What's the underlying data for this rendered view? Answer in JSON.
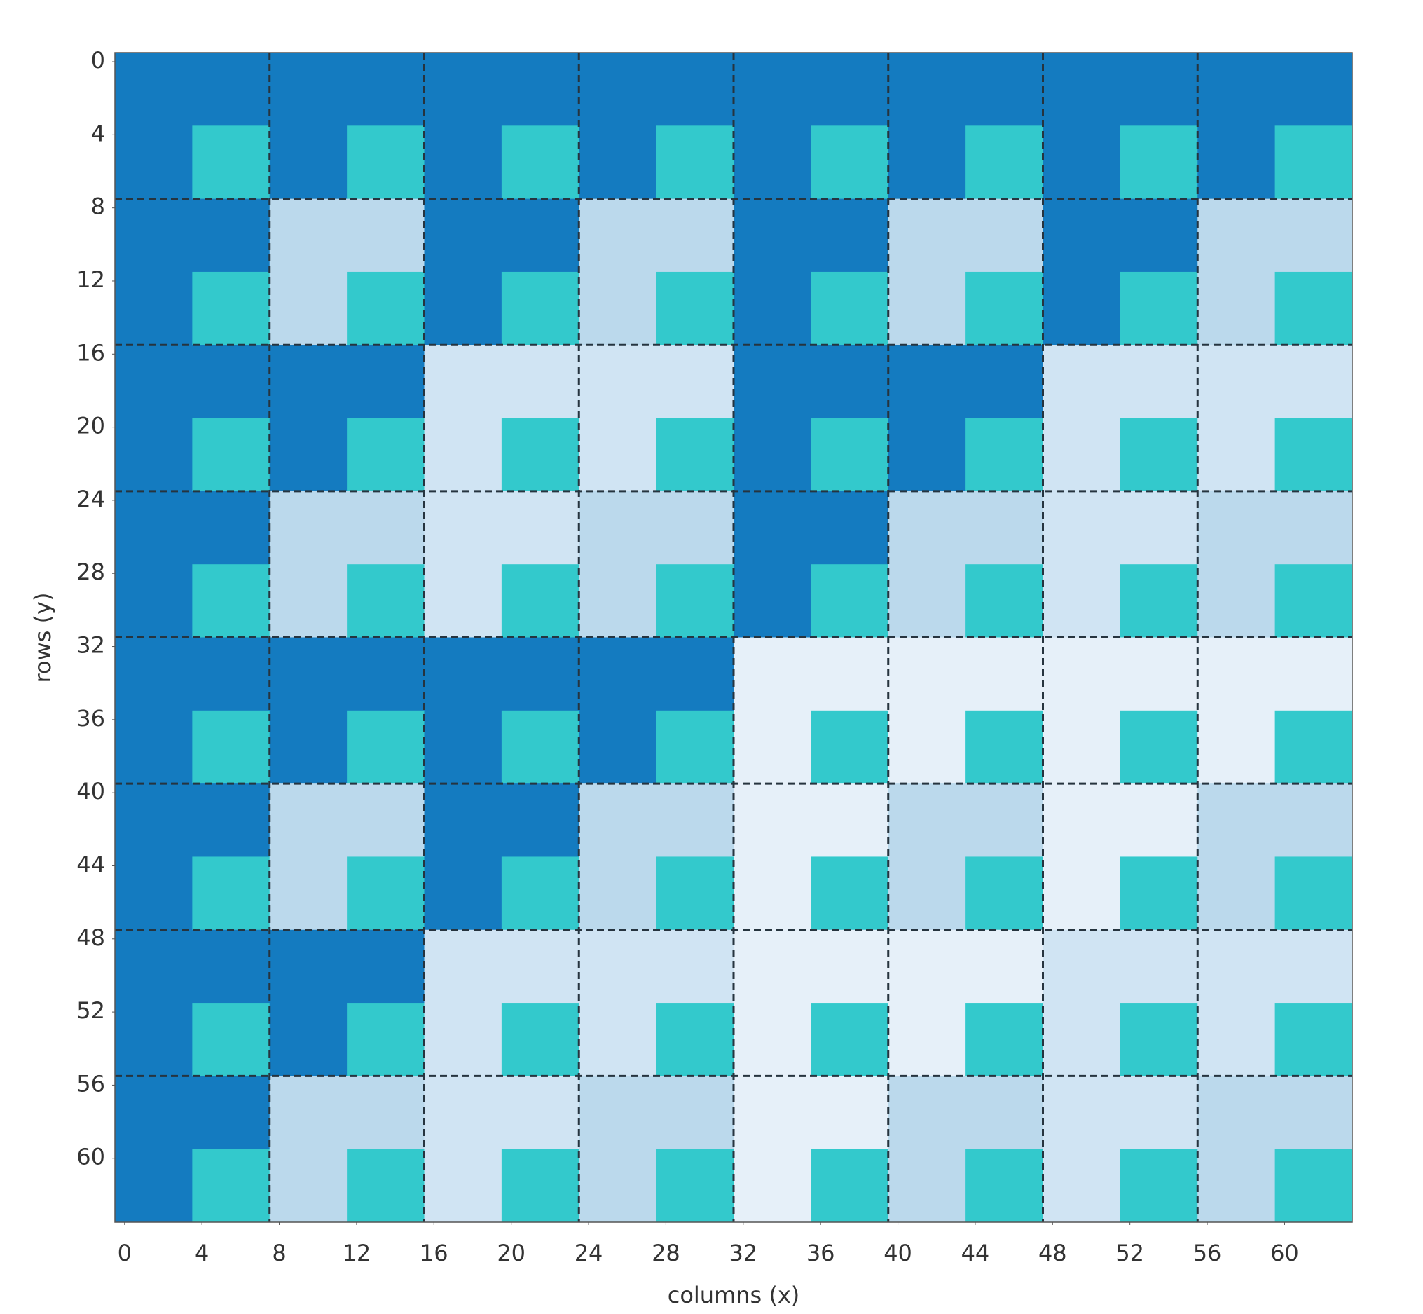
{
  "chart_data": {
    "type": "block-heatmap",
    "xlabel": "columns (x)",
    "ylabel": "rows (y)",
    "xlim": [
      -0.5,
      63.5
    ],
    "ylim": [
      -0.5,
      63.5
    ],
    "y_inverted": true,
    "xticks": [
      0,
      4,
      8,
      12,
      16,
      20,
      24,
      28,
      32,
      36,
      40,
      44,
      48,
      52,
      56,
      60
    ],
    "yticks": [
      0,
      4,
      8,
      12,
      16,
      20,
      24,
      28,
      32,
      36,
      40,
      44,
      48,
      52,
      56,
      60
    ],
    "grid": true,
    "accent_color": "#33c9cc",
    "block_colors": [
      [
        "#147bc0",
        "#147bc0",
        "#147bc0",
        "#147bc0",
        "#147bc0",
        "#147bc0",
        "#147bc0",
        "#147bc0"
      ],
      [
        "#147bc0",
        "#bbd9ec",
        "#147bc0",
        "#bbd9ec",
        "#147bc0",
        "#bbd9ec",
        "#147bc0",
        "#bbd9ec"
      ],
      [
        "#147bc0",
        "#147bc0",
        "#d0e4f3",
        "#d0e4f3",
        "#147bc0",
        "#147bc0",
        "#d0e4f3",
        "#d0e4f3"
      ],
      [
        "#147bc0",
        "#bbd9ec",
        "#d0e4f3",
        "#bbd9ec",
        "#147bc0",
        "#bbd9ec",
        "#d0e4f3",
        "#bbd9ec"
      ],
      [
        "#147bc0",
        "#147bc0",
        "#147bc0",
        "#147bc0",
        "#e6f0f9",
        "#e6f0f9",
        "#e6f0f9",
        "#e6f0f9"
      ],
      [
        "#147bc0",
        "#bbd9ec",
        "#147bc0",
        "#bbd9ec",
        "#e6f0f9",
        "#bbd9ec",
        "#e6f0f9",
        "#bbd9ec"
      ],
      [
        "#147bc0",
        "#147bc0",
        "#d0e4f3",
        "#d0e4f3",
        "#e6f0f9",
        "#e6f0f9",
        "#d0e4f3",
        "#d0e4f3"
      ],
      [
        "#147bc0",
        "#bbd9ec",
        "#d0e4f3",
        "#bbd9ec",
        "#e6f0f9",
        "#bbd9ec",
        "#d0e4f3",
        "#bbd9ec"
      ]
    ]
  }
}
